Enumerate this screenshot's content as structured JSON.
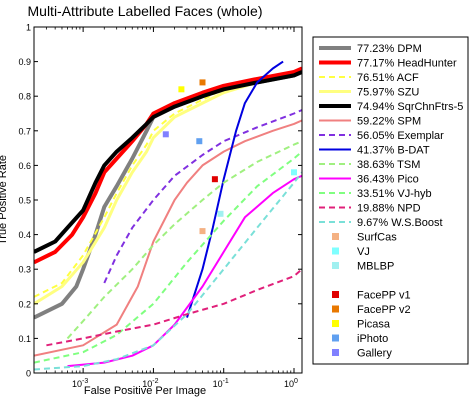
{
  "chart_data": {
    "type": "line",
    "title": "Multi-Attribute Labelled Faces (whole)",
    "xlabel": "False Positive Per Image",
    "ylabel": "True Positive Rate",
    "xscale": "log",
    "xlim": [
      0.0002,
      1.3
    ],
    "ylim": [
      0,
      1
    ],
    "xticks": [
      {
        "value": 0.001,
        "label": "10",
        "exp": "-3"
      },
      {
        "value": 0.01,
        "label": "10",
        "exp": "-2"
      },
      {
        "value": 0.1,
        "label": "10",
        "exp": "-1"
      },
      {
        "value": 1,
        "label": "10",
        "exp": "0"
      }
    ],
    "yticks": [
      {
        "value": 0,
        "label": "0"
      },
      {
        "value": 0.1,
        "label": "0.1"
      },
      {
        "value": 0.2,
        "label": "0.2"
      },
      {
        "value": 0.3,
        "label": "0.3"
      },
      {
        "value": 0.4,
        "label": "0.4"
      },
      {
        "value": 0.5,
        "label": "0.5"
      },
      {
        "value": 0.6,
        "label": "0.6"
      },
      {
        "value": 0.7,
        "label": "0.7"
      },
      {
        "value": 0.8,
        "label": "0.8"
      },
      {
        "value": 0.9,
        "label": "0.9"
      },
      {
        "value": 1,
        "label": "1"
      }
    ],
    "legend_position": "right",
    "series": [
      {
        "name": "77.23% DPM",
        "color": "#808080",
        "dash": "solid",
        "width": 4,
        "x": [
          0.0002,
          0.0005,
          0.0008,
          0.001,
          0.0015,
          0.002,
          0.003,
          0.005,
          0.008,
          0.01,
          0.02,
          0.05,
          0.1,
          0.3,
          1,
          1.3
        ],
        "y": [
          0.16,
          0.2,
          0.25,
          0.3,
          0.4,
          0.48,
          0.54,
          0.62,
          0.7,
          0.74,
          0.77,
          0.8,
          0.82,
          0.84,
          0.86,
          0.87
        ]
      },
      {
        "name": "77.17% HeadHunter",
        "color": "#ff0000",
        "dash": "solid",
        "width": 4,
        "x": [
          0.0002,
          0.0004,
          0.0007,
          0.001,
          0.0015,
          0.002,
          0.003,
          0.005,
          0.008,
          0.01,
          0.02,
          0.05,
          0.1,
          0.3,
          1,
          1.3
        ],
        "y": [
          0.32,
          0.35,
          0.4,
          0.45,
          0.52,
          0.58,
          0.62,
          0.67,
          0.72,
          0.75,
          0.78,
          0.81,
          0.83,
          0.85,
          0.87,
          0.88
        ]
      },
      {
        "name": "76.51% ACF",
        "color": "#ffff40",
        "dash": "dashed",
        "width": 2,
        "x": [
          0.0002,
          0.0005,
          0.001,
          0.002,
          0.003,
          0.005,
          0.008,
          0.01,
          0.02,
          0.05,
          0.1,
          0.3,
          1,
          1.3
        ],
        "y": [
          0.22,
          0.26,
          0.34,
          0.45,
          0.52,
          0.6,
          0.66,
          0.7,
          0.75,
          0.79,
          0.82,
          0.84,
          0.86,
          0.87
        ]
      },
      {
        "name": "75.97% SZU",
        "color": "#ffff80",
        "dash": "solid",
        "width": 3,
        "x": [
          0.0002,
          0.0005,
          0.001,
          0.002,
          0.003,
          0.005,
          0.008,
          0.01,
          0.02,
          0.05,
          0.1,
          0.3,
          1,
          1.3
        ],
        "y": [
          0.2,
          0.25,
          0.32,
          0.42,
          0.5,
          0.58,
          0.64,
          0.68,
          0.74,
          0.78,
          0.81,
          0.84,
          0.86,
          0.87
        ]
      },
      {
        "name": "74.94% SqrChnFtrs-5",
        "color": "#000000",
        "dash": "solid",
        "width": 4,
        "x": [
          0.0002,
          0.0004,
          0.0006,
          0.001,
          0.0015,
          0.002,
          0.003,
          0.005,
          0.008,
          0.01,
          0.02,
          0.05,
          0.1,
          0.3,
          1,
          1.3
        ],
        "y": [
          0.35,
          0.38,
          0.42,
          0.47,
          0.55,
          0.6,
          0.64,
          0.68,
          0.72,
          0.74,
          0.77,
          0.8,
          0.82,
          0.84,
          0.86,
          0.87
        ]
      },
      {
        "name": "59.22% SPM",
        "color": "#f08080",
        "dash": "solid",
        "width": 2,
        "x": [
          0.0002,
          0.001,
          0.003,
          0.006,
          0.01,
          0.02,
          0.03,
          0.05,
          0.1,
          0.2,
          0.5,
          1,
          1.3
        ],
        "y": [
          0.05,
          0.08,
          0.14,
          0.25,
          0.38,
          0.5,
          0.55,
          0.6,
          0.64,
          0.67,
          0.7,
          0.72,
          0.73
        ]
      },
      {
        "name": "56.05% Exemplar",
        "color": "#8030e0",
        "dash": "dashed",
        "width": 2,
        "x": [
          0.002,
          0.003,
          0.005,
          0.01,
          0.02,
          0.05,
          0.1,
          0.3,
          1,
          1.3
        ],
        "y": [
          0.26,
          0.34,
          0.42,
          0.5,
          0.57,
          0.63,
          0.67,
          0.71,
          0.75,
          0.76
        ]
      },
      {
        "name": "41.37% B-DAT",
        "color": "#0000e0",
        "dash": "solid",
        "width": 2,
        "x": [
          0.03,
          0.05,
          0.07,
          0.1,
          0.15,
          0.2,
          0.3,
          0.5,
          0.7
        ],
        "y": [
          0.16,
          0.3,
          0.42,
          0.56,
          0.7,
          0.78,
          0.84,
          0.88,
          0.9
        ]
      },
      {
        "name": "38.63% TSM",
        "color": "#a0f080",
        "dash": "dashed",
        "width": 2,
        "x": [
          0.0006,
          0.001,
          0.002,
          0.005,
          0.01,
          0.02,
          0.05,
          0.1,
          0.3,
          1,
          1.3
        ],
        "y": [
          0.1,
          0.15,
          0.22,
          0.3,
          0.37,
          0.43,
          0.5,
          0.55,
          0.61,
          0.66,
          0.67
        ]
      },
      {
        "name": "36.43% Pico",
        "color": "#ff00ff",
        "dash": "solid",
        "width": 2,
        "x": [
          0.0006,
          0.002,
          0.005,
          0.01,
          0.02,
          0.05,
          0.1,
          0.2,
          0.5,
          1,
          1.3
        ],
        "y": [
          0.02,
          0.03,
          0.05,
          0.08,
          0.14,
          0.25,
          0.35,
          0.45,
          0.52,
          0.56,
          0.57
        ]
      },
      {
        "name": "33.51% VJ-hyb",
        "color": "#80ff80",
        "dash": "dashed",
        "width": 2,
        "x": [
          0.0002,
          0.001,
          0.003,
          0.01,
          0.03,
          0.1,
          0.3,
          1,
          1.3
        ],
        "y": [
          0.03,
          0.06,
          0.11,
          0.2,
          0.32,
          0.44,
          0.54,
          0.62,
          0.64
        ]
      },
      {
        "name": "19.88% NPD",
        "color": "#e0207a",
        "dash": "dashed",
        "width": 2,
        "x": [
          0.0003,
          0.001,
          0.003,
          0.01,
          0.03,
          0.1,
          0.3,
          1,
          1.3
        ],
        "y": [
          0.08,
          0.1,
          0.12,
          0.14,
          0.17,
          0.2,
          0.24,
          0.28,
          0.3
        ]
      },
      {
        "name": "9.67% W.S.Boost",
        "color": "#7ae0d8",
        "dash": "dashed",
        "width": 2,
        "x": [
          0.0002,
          0.001,
          0.003,
          0.01,
          0.03,
          0.1,
          0.3,
          1,
          1.3
        ],
        "y": [
          0.01,
          0.02,
          0.04,
          0.08,
          0.17,
          0.3,
          0.42,
          0.55,
          0.58
        ]
      }
    ],
    "points": [
      {
        "name": "SurfCas",
        "color": "#f4b183",
        "x": 0.05,
        "y": 0.41
      },
      {
        "name": "VJ",
        "color": "#7fffff",
        "x": 1.0,
        "y": 0.58
      },
      {
        "name": "MBLBP",
        "color": "#a0f0f0",
        "x": 0.09,
        "y": 0.46
      },
      {
        "name": "FacePP v1",
        "color": "#e00000",
        "x": 0.075,
        "y": 0.56
      },
      {
        "name": "FacePP v2",
        "color": "#e87800",
        "x": 0.05,
        "y": 0.84
      },
      {
        "name": "Picasa",
        "color": "#ffff00",
        "x": 0.025,
        "y": 0.82
      },
      {
        "name": "iPhoto",
        "color": "#60a0f0",
        "x": 0.045,
        "y": 0.67
      },
      {
        "name": "Gallery",
        "color": "#8080ff",
        "x": 0.015,
        "y": 0.69
      }
    ],
    "legend": [
      {
        "label": "77.23% DPM",
        "kind": "line",
        "color": "#808080",
        "dash": "solid",
        "width": 4
      },
      {
        "label": "77.17% HeadHunter",
        "kind": "line",
        "color": "#ff0000",
        "dash": "solid",
        "width": 4
      },
      {
        "label": "76.51% ACF",
        "kind": "line",
        "color": "#ffff40",
        "dash": "dashed",
        "width": 2
      },
      {
        "label": "75.97% SZU",
        "kind": "line",
        "color": "#ffff80",
        "dash": "solid",
        "width": 3
      },
      {
        "label": "74.94% SqrChnFtrs-5",
        "kind": "line",
        "color": "#000000",
        "dash": "solid",
        "width": 4
      },
      {
        "label": "59.22% SPM",
        "kind": "line",
        "color": "#f08080",
        "dash": "solid",
        "width": 2
      },
      {
        "label": "56.05% Exemplar",
        "kind": "line",
        "color": "#8030e0",
        "dash": "dashed",
        "width": 2
      },
      {
        "label": "41.37% B-DAT",
        "kind": "line",
        "color": "#0000e0",
        "dash": "solid",
        "width": 2
      },
      {
        "label": "38.63% TSM",
        "kind": "line",
        "color": "#a0f080",
        "dash": "dashed",
        "width": 2
      },
      {
        "label": "36.43% Pico",
        "kind": "line",
        "color": "#ff00ff",
        "dash": "solid",
        "width": 2
      },
      {
        "label": "33.51% VJ-hyb",
        "kind": "line",
        "color": "#80ff80",
        "dash": "dashed",
        "width": 2
      },
      {
        "label": "19.88% NPD",
        "kind": "line",
        "color": "#e0207a",
        "dash": "dashed",
        "width": 2
      },
      {
        "label": "9.67% W.S.Boost",
        "kind": "line",
        "color": "#7ae0d8",
        "dash": "dashed",
        "width": 2
      },
      {
        "label": "SurfCas",
        "kind": "marker",
        "color": "#f4b183"
      },
      {
        "label": "VJ",
        "kind": "marker",
        "color": "#7fffff"
      },
      {
        "label": "MBLBP",
        "kind": "marker",
        "color": "#a0f0f0"
      },
      {
        "label": "",
        "kind": "gap"
      },
      {
        "label": "FacePP v1",
        "kind": "marker",
        "color": "#e00000"
      },
      {
        "label": "FacePP v2",
        "kind": "marker",
        "color": "#e87800"
      },
      {
        "label": "Picasa",
        "kind": "marker",
        "color": "#ffff00"
      },
      {
        "label": "iPhoto",
        "kind": "marker",
        "color": "#60a0f0"
      },
      {
        "label": "Gallery",
        "kind": "marker",
        "color": "#8080ff"
      }
    ]
  }
}
